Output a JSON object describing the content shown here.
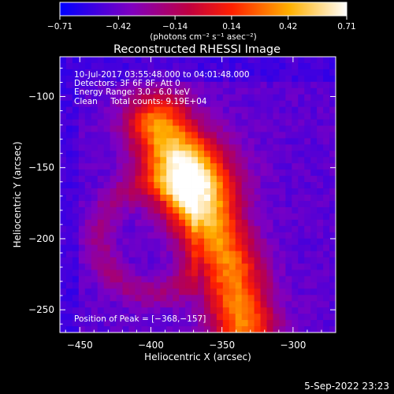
{
  "chart_data": {
    "type": "heatmap",
    "title": "Reconstructed RHESSI Image",
    "xlabel": "Heliocentric X (arcsec)",
    "ylabel": "Heliocentric Y (arcsec)",
    "xlim": [
      -464,
      -270
    ],
    "ylim": [
      -266,
      -72
    ],
    "xticks": [
      -450,
      -400,
      -350,
      -300
    ],
    "xtick_labels": [
      "−450",
      "−400",
      "−350",
      "−300"
    ],
    "yticks": [
      -250,
      -200,
      -150,
      -100
    ],
    "ytick_labels": [
      "−250",
      "−200",
      "−150",
      "−100"
    ],
    "colorbar": {
      "min": -0.71,
      "max": 0.71,
      "ticks": [
        -0.71,
        -0.42,
        -0.14,
        0.14,
        0.42,
        0.71
      ],
      "tick_labels": [
        "−0.71",
        "−0.42",
        "−0.14",
        "0.14",
        "0.42",
        "0.71"
      ],
      "unit_label": "(photons cm⁻² s⁻¹ asec⁻²)"
    },
    "annotations": [
      "10-Jul-2017 03:55:48.000 to 04:01:48.000",
      "Detectors: 3F 6F 8F, Att 0",
      "Energy Range: 3.0 - 6.0 keV",
      "Clean     Total counts: 9.19E+04"
    ],
    "peak_label": "Position of Peak = [−368,−157]",
    "peak": [
      -368,
      -157
    ],
    "ridge": [
      [
        -395,
        -120
      ],
      [
        -370,
        -165
      ],
      [
        -345,
        -220
      ],
      [
        -335,
        -260
      ]
    ],
    "arc_center": [
      -398,
      -200
    ]
  },
  "footer": {
    "date": "5-Sep-2022 23:23"
  }
}
